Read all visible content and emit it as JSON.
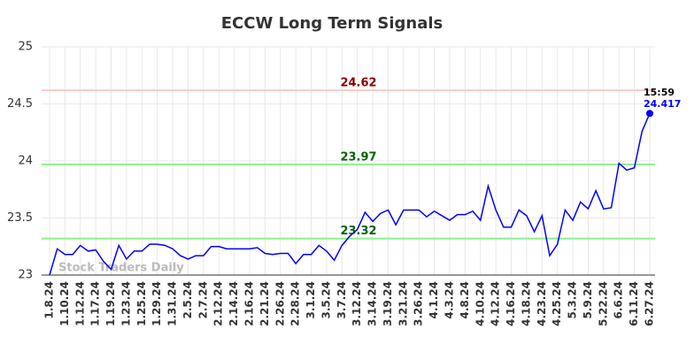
{
  "chart_data": {
    "type": "line",
    "title": "ECCW Long Term Signals",
    "categories": [
      "1.8.24",
      null,
      "1.10.24",
      null,
      "1.12.24",
      null,
      "1.17.24",
      null,
      "1.19.24",
      null,
      "1.23.24",
      null,
      "1.25.24",
      null,
      "1.29.24",
      null,
      "1.31.24",
      null,
      "2.5.24",
      null,
      "2.7.24",
      null,
      "2.12.24",
      null,
      "2.14.24",
      null,
      "2.16.24",
      null,
      "2.21.24",
      null,
      "2.26.24",
      null,
      "2.28.24",
      null,
      "3.1.24",
      null,
      "3.5.24",
      null,
      "3.7.24",
      null,
      "3.12.24",
      null,
      "3.14.24",
      null,
      "3.19.24",
      null,
      "3.21.24",
      null,
      "3.26.24",
      null,
      "4.1.24",
      null,
      "4.3.24",
      null,
      "4.8.24",
      null,
      "4.10.24",
      null,
      "4.12.24",
      null,
      "4.16.24",
      null,
      "4.18.24",
      null,
      "4.23.24",
      null,
      "4.25.24",
      null,
      "5.3.24",
      null,
      "5.9.24",
      null,
      "5.22.24",
      null,
      "6.6.24",
      null,
      "6.11.24",
      null,
      "6.27.24"
    ],
    "values": [
      23.0,
      23.23,
      23.18,
      23.18,
      23.26,
      23.21,
      23.22,
      23.12,
      23.05,
      23.26,
      23.14,
      23.21,
      23.21,
      23.27,
      23.27,
      23.26,
      23.23,
      23.17,
      23.14,
      23.17,
      23.17,
      23.25,
      23.25,
      23.23,
      23.23,
      23.23,
      23.23,
      23.24,
      23.19,
      23.18,
      23.19,
      23.19,
      23.1,
      23.18,
      23.18,
      23.26,
      23.21,
      23.13,
      23.26,
      23.34,
      23.4,
      23.55,
      23.47,
      23.54,
      23.57,
      23.44,
      23.57,
      23.57,
      23.57,
      23.51,
      23.56,
      23.52,
      23.48,
      23.53,
      23.53,
      23.56,
      23.48,
      23.78,
      23.57,
      23.42,
      23.42,
      23.57,
      23.52,
      23.38,
      23.52,
      23.17,
      23.27,
      23.57,
      23.48,
      23.64,
      23.58,
      23.74,
      23.58,
      23.59,
      23.98,
      23.92,
      23.94,
      24.26,
      24.417
    ],
    "color": "#0000ff",
    "ylim": [
      23,
      25
    ],
    "yticks": [
      23,
      23.5,
      24,
      24.5,
      25
    ],
    "grid": true,
    "hlines": [
      {
        "value": 24.62,
        "color": "#ffcccc",
        "label_color": "#8b0000"
      },
      {
        "value": 23.97,
        "color": "#90ee90",
        "label_color": "#006400"
      },
      {
        "value": 23.32,
        "color": "#90ee90",
        "label_color": "#006400"
      }
    ],
    "last_time": "15:59",
    "watermark": "Stock Traders Daily"
  }
}
